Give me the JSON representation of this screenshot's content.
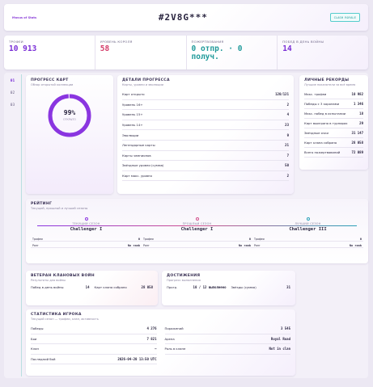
{
  "header": {
    "logo": "Mavus of Stats",
    "title": "#2V8G***",
    "button": "CLASH ROYALE"
  },
  "summary": [
    {
      "label": "ТРОФЕИ",
      "value": "10 913"
    },
    {
      "label": "УРОВЕНЬ КОРОЛЯ",
      "value": "58"
    },
    {
      "label": "ПОЖЕРТВОВАНИЯ",
      "value": "0 отпр. · 0 получ."
    },
    {
      "label": "ПОБЕД В ДЕНЬ ВОЙНЫ",
      "value": "14"
    }
  ],
  "nav": [
    "01",
    "02",
    "03"
  ],
  "card_progress": {
    "title": "ПРОГРЕСС КАРТ",
    "subtitle": "Обзор открытой коллекции",
    "percent": "99%",
    "caption": "ОТКРЫТО"
  },
  "details": {
    "title": "ДЕТАЛИ ПРОГРЕССА",
    "subtitle": "Карты, уровни и эволюции",
    "rows": [
      [
        "Карт открыто",
        "120/121"
      ],
      [
        "Уровень 16+",
        "2"
      ],
      [
        "Уровень 15+",
        "4"
      ],
      [
        "Уровень 14+",
        "23"
      ],
      [
        "Эволюции",
        "9"
      ],
      [
        "Легендарные карты",
        "21"
      ],
      [
        "Карты чемпионов",
        "7"
      ],
      [
        "Звёздные уровни (сумма)",
        "50"
      ],
      [
        "Карт макс. уровня",
        "2"
      ]
    ]
  },
  "records": {
    "title": "ЛИЧНЫЕ РЕКОРДЫ",
    "subtitle": "Лучшие показатели за всё время",
    "rows": [
      [
        "Макс. трофеи",
        "10 982"
      ],
      [
        "Победы с 3 коронами",
        "1 346"
      ],
      [
        "Макс. побед в испытании",
        "18"
      ],
      [
        "Карт выиграно в турнирах",
        "29"
      ],
      [
        "Звёздные очки",
        "31 147"
      ],
      [
        "Карт клана собрано",
        "28 058"
      ],
      [
        "Всего пожертвований",
        "72 089"
      ]
    ]
  },
  "rating": {
    "title": "РЕЙТИНГ",
    "subtitle": "Текущий, прошлый и лучший сезоны",
    "seasons": [
      {
        "label": "ТЕКУЩИЙ СЕЗОН",
        "league": "Challenger I",
        "trophies_label": "Трофеи",
        "trophies": "0",
        "rank_label": "Ранг",
        "rank": "No rank"
      },
      {
        "label": "ПРОШЛЫЙ СЕЗОН",
        "league": "Challenger I",
        "trophies_label": "Трофеи",
        "trophies": "0",
        "rank_label": "Ранг",
        "rank": "No rank"
      },
      {
        "label": "ЛУЧШИЙ СЕЗОН",
        "league": "Challenger III",
        "trophies_label": "Трофеи",
        "trophies": "0",
        "rank_label": "Ранг",
        "rank": "No rank"
      }
    ]
  },
  "veteran": {
    "title": "ВЕТЕРАН КЛАНОВЫХ ВОЙН",
    "subtitle": "Результаты для войны",
    "rows": [
      [
        "Побед в день войны",
        "14"
      ],
      [
        "Карт клана собрано",
        "28 058"
      ]
    ]
  },
  "achievements": {
    "title": "ДОСТИЖЕНИЯ",
    "subtitle": "Прогресс выполнения",
    "rows": [
      [
        "Прогр.",
        "10 / 12 выполнено"
      ],
      [
        "Звёзды (сумма)",
        "31"
      ]
    ]
  },
  "player_stats": {
    "title": "СТАТИСТИКА ИГРОКА",
    "subtitle": "Текущий сезон — трофеи, клан, активность",
    "rows": [
      [
        "Победы",
        "4 276"
      ],
      [
        "Поражений",
        "3 545"
      ],
      [
        "Бои",
        "7 821"
      ],
      [
        "Арена",
        "Royal Road"
      ],
      [
        "Клан",
        "—"
      ],
      [
        "Роль в клане",
        "Not in clan"
      ],
      [
        "Последний бой",
        "2026-04-20 13:50 UTC"
      ]
    ]
  }
}
